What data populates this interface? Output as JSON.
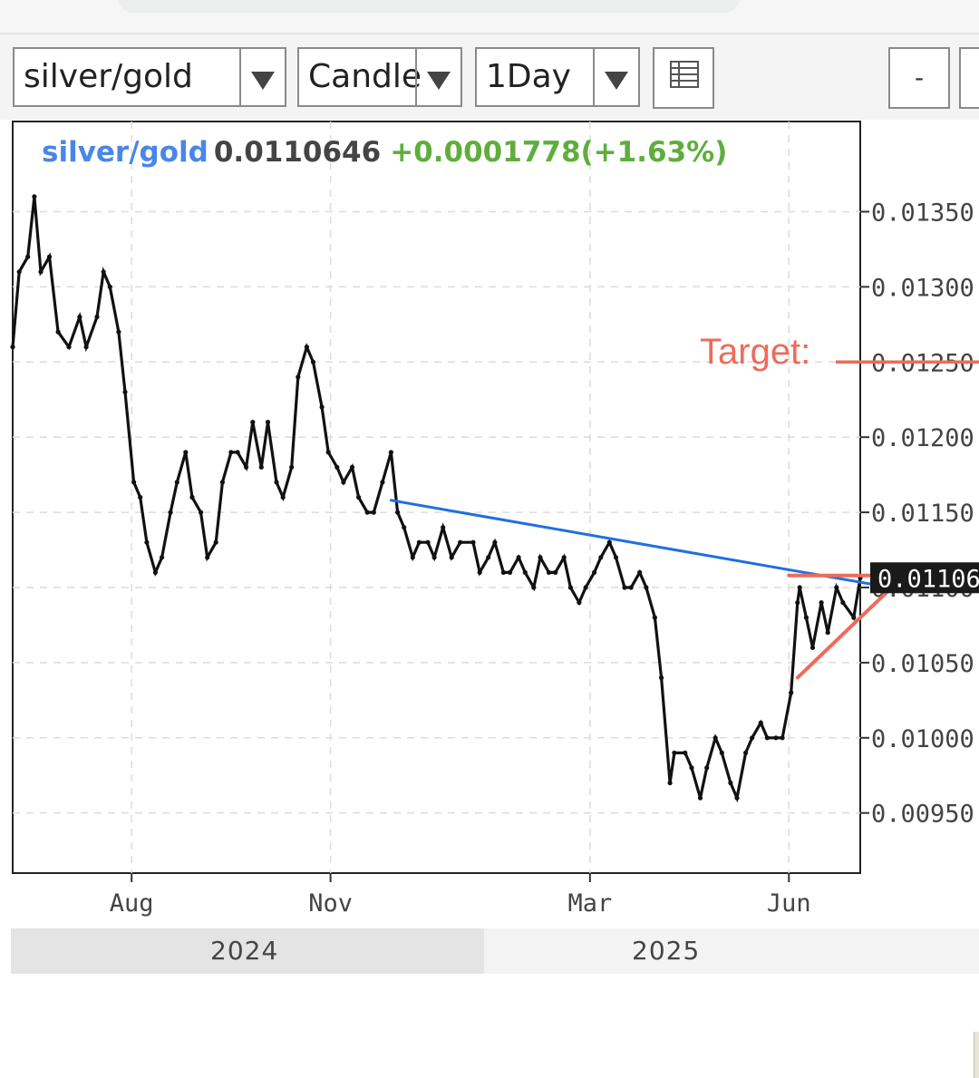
{
  "toolbar": {
    "symbol_select": "silver/gold",
    "chart_type_select": "Candle",
    "interval_select": "1Day",
    "minus_button": "-"
  },
  "header": {
    "symbol": "silver/gold",
    "last": "0.0110646",
    "change": "+0.0001778(+1.63%)"
  },
  "annotation": {
    "target_label": "Target:",
    "last_price_tag": "0.01106"
  },
  "colors": {
    "price": "#111111",
    "trendline": "#1f6fe0",
    "annotation": "#ee6b5b",
    "symbol": "#4a86e8",
    "change": "#5fae3c"
  },
  "chart_data": {
    "type": "line",
    "title": "",
    "xlabel": "",
    "ylabel": "",
    "x_ticks": [
      "Aug",
      "Nov",
      "Mar",
      "Jun"
    ],
    "x_tick_dates": [
      "2024-08-01",
      "2024-11-01",
      "2025-03-01",
      "2025-06-01"
    ],
    "year_labels": [
      "2024",
      "2025"
    ],
    "y_ticks": [
      "0.01350",
      "0.01300",
      "0.01250",
      "0.01200",
      "0.01150",
      "0.01100",
      "0.01050",
      "0.01000",
      "0.00950"
    ],
    "ylim": [
      0.0091,
      0.0141
    ],
    "xlim": [
      "2024-06-07",
      "2025-07-04"
    ],
    "grid": true,
    "last_value": 0.0110646,
    "series": [
      {
        "values": [
          [
            "2024-06-07",
            0.0126
          ],
          [
            "2024-06-10",
            0.0131
          ],
          [
            "2024-06-14",
            0.0132
          ],
          [
            "2024-06-17",
            0.0136
          ],
          [
            "2024-06-20",
            0.0131
          ],
          [
            "2024-06-24",
            0.0132
          ],
          [
            "2024-06-28",
            0.0127
          ],
          [
            "2024-07-03",
            0.0126
          ],
          [
            "2024-07-08",
            0.0128
          ],
          [
            "2024-07-11",
            0.0126
          ],
          [
            "2024-07-16",
            0.0128
          ],
          [
            "2024-07-19",
            0.0131
          ],
          [
            "2024-07-22",
            0.013
          ],
          [
            "2024-07-26",
            0.0127
          ],
          [
            "2024-07-29",
            0.0123
          ],
          [
            "2024-08-02",
            0.0117
          ],
          [
            "2024-08-05",
            0.0116
          ],
          [
            "2024-08-08",
            0.0113
          ],
          [
            "2024-08-12",
            0.0111
          ],
          [
            "2024-08-15",
            0.0112
          ],
          [
            "2024-08-19",
            0.0115
          ],
          [
            "2024-08-22",
            0.0117
          ],
          [
            "2024-08-26",
            0.0119
          ],
          [
            "2024-08-29",
            0.0116
          ],
          [
            "2024-09-02",
            0.0115
          ],
          [
            "2024-09-05",
            0.0112
          ],
          [
            "2024-09-09",
            0.0113
          ],
          [
            "2024-09-12",
            0.0117
          ],
          [
            "2024-09-16",
            0.0119
          ],
          [
            "2024-09-19",
            0.0119
          ],
          [
            "2024-09-23",
            0.0118
          ],
          [
            "2024-09-26",
            0.0121
          ],
          [
            "2024-09-30",
            0.0118
          ],
          [
            "2024-10-03",
            0.0121
          ],
          [
            "2024-10-07",
            0.0117
          ],
          [
            "2024-10-10",
            0.0116
          ],
          [
            "2024-10-14",
            0.0118
          ],
          [
            "2024-10-17",
            0.0124
          ],
          [
            "2024-10-21",
            0.0126
          ],
          [
            "2024-10-24",
            0.0125
          ],
          [
            "2024-10-28",
            0.0122
          ],
          [
            "2024-10-31",
            0.0119
          ],
          [
            "2024-11-04",
            0.0118
          ],
          [
            "2024-11-07",
            0.0117
          ],
          [
            "2024-11-11",
            0.0118
          ],
          [
            "2024-11-14",
            0.0116
          ],
          [
            "2024-11-18",
            0.0115
          ],
          [
            "2024-11-21",
            0.0115
          ],
          [
            "2024-11-25",
            0.0117
          ],
          [
            "2024-11-29",
            0.0119
          ],
          [
            "2024-12-02",
            0.0115
          ],
          [
            "2024-12-05",
            0.0114
          ],
          [
            "2024-12-09",
            0.0112
          ],
          [
            "2024-12-12",
            0.0113
          ],
          [
            "2024-12-16",
            0.0113
          ],
          [
            "2024-12-19",
            0.0112
          ],
          [
            "2024-12-23",
            0.0114
          ],
          [
            "2024-12-27",
            0.0112
          ],
          [
            "2024-12-31",
            0.0113
          ],
          [
            "2025-01-06",
            0.0113
          ],
          [
            "2025-01-09",
            0.0111
          ],
          [
            "2025-01-13",
            0.0112
          ],
          [
            "2025-01-16",
            0.0113
          ],
          [
            "2025-01-20",
            0.0111
          ],
          [
            "2025-01-23",
            0.0111
          ],
          [
            "2025-01-27",
            0.0112
          ],
          [
            "2025-01-30",
            0.0111
          ],
          [
            "2025-02-03",
            0.011
          ],
          [
            "2025-02-06",
            0.0112
          ],
          [
            "2025-02-10",
            0.0111
          ],
          [
            "2025-02-13",
            0.0111
          ],
          [
            "2025-02-17",
            0.0112
          ],
          [
            "2025-02-20",
            0.011
          ],
          [
            "2025-02-24",
            0.0109
          ],
          [
            "2025-02-27",
            0.011
          ],
          [
            "2025-03-03",
            0.0111
          ],
          [
            "2025-03-06",
            0.0112
          ],
          [
            "2025-03-10",
            0.0113
          ],
          [
            "2025-03-13",
            0.0112
          ],
          [
            "2025-03-17",
            0.011
          ],
          [
            "2025-03-20",
            0.011
          ],
          [
            "2025-03-24",
            0.0111
          ],
          [
            "2025-03-27",
            0.011
          ],
          [
            "2025-03-31",
            0.0108
          ],
          [
            "2025-04-03",
            0.0104
          ],
          [
            "2025-04-07",
            0.0097
          ],
          [
            "2025-04-09",
            0.0099
          ],
          [
            "2025-04-14",
            0.0099
          ],
          [
            "2025-04-17",
            0.0098
          ],
          [
            "2025-04-21",
            0.0096
          ],
          [
            "2025-04-24",
            0.0098
          ],
          [
            "2025-04-28",
            0.01
          ],
          [
            "2025-05-01",
            0.0099
          ],
          [
            "2025-05-05",
            0.0097
          ],
          [
            "2025-05-08",
            0.0096
          ],
          [
            "2025-05-12",
            0.0099
          ],
          [
            "2025-05-15",
            0.01
          ],
          [
            "2025-05-19",
            0.0101
          ],
          [
            "2025-05-22",
            0.01
          ],
          [
            "2025-05-26",
            0.01
          ],
          [
            "2025-05-29",
            0.01
          ],
          [
            "2025-06-02",
            0.0103
          ],
          [
            "2025-06-05",
            0.0109
          ],
          [
            "2025-06-06",
            0.011
          ],
          [
            "2025-06-09",
            0.0108
          ],
          [
            "2025-06-12",
            0.0106
          ],
          [
            "2025-06-16",
            0.0109
          ],
          [
            "2025-06-19",
            0.0107
          ],
          [
            "2025-06-23",
            0.011
          ],
          [
            "2025-06-26",
            0.0109
          ],
          [
            "2025-07-01",
            0.0108
          ],
          [
            "2025-07-04",
            0.0110646
          ]
        ]
      }
    ],
    "annotations": [
      {
        "type": "trendline",
        "color": "#1f6fe0",
        "from": [
          "2024-11-29",
          0.01158
        ],
        "to": [
          "2025-07-30",
          0.01097
        ]
      },
      {
        "type": "horizontal",
        "color": "#ee6b5b",
        "from": [
          "2025-06-01",
          0.01108
        ],
        "to": [
          "2025-07-20",
          0.01108
        ]
      },
      {
        "type": "trendline",
        "color": "#ee6b5b",
        "from": [
          "2025-06-05",
          0.0104
        ],
        "to": [
          "2025-07-20",
          0.01102
        ]
      },
      {
        "type": "target",
        "color": "#ee6b5b",
        "label": "Target:",
        "value": 0.0125
      }
    ]
  }
}
